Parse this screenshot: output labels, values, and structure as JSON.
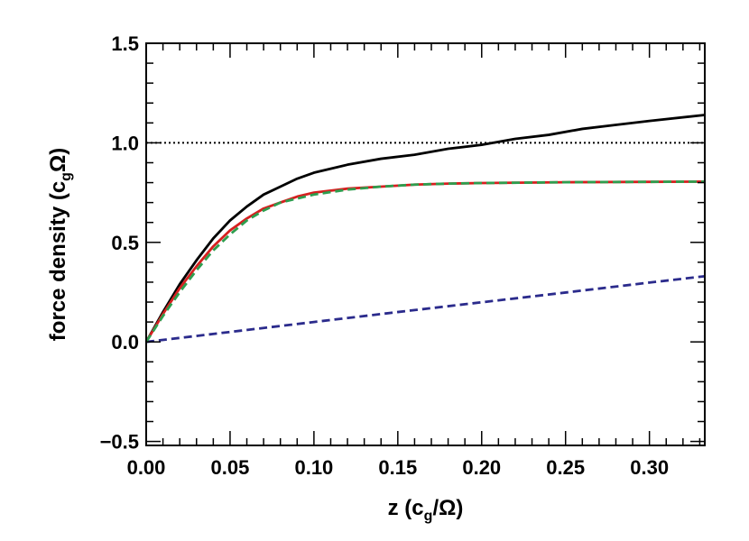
{
  "chart_data": {
    "type": "line",
    "xlabel_parts": [
      "z (c",
      "g",
      "/Ω)"
    ],
    "ylabel_parts": [
      "force density (c",
      "g",
      "Ω)"
    ],
    "xlim": [
      0,
      0.333
    ],
    "ylim": [
      -0.52,
      1.5
    ],
    "x_ticks": [
      0.0,
      0.05,
      0.1,
      0.15,
      0.2,
      0.25,
      0.3
    ],
    "x_tick_labels": [
      "0.00",
      "0.05",
      "0.10",
      "0.15",
      "0.20",
      "0.25",
      "0.30"
    ],
    "y_ticks": [
      -0.5,
      0.0,
      0.5,
      1.0,
      1.5
    ],
    "y_tick_labels": [
      "−0.5",
      "0.0",
      "0.5",
      "1.0",
      "1.5"
    ],
    "x_minor_step": 0.01,
    "y_minor_step": 0.1,
    "grid": false,
    "legend": "none",
    "series": [
      {
        "color": "#000000",
        "style": "dotted",
        "x": [
          0,
          0.333
        ],
        "y": [
          1.0,
          1.0
        ]
      },
      {
        "color": "#2b2b8c",
        "style": "dashed",
        "x": [
          0,
          0.05,
          0.1,
          0.15,
          0.2,
          0.25,
          0.3,
          0.333
        ],
        "y": [
          0.0,
          0.05,
          0.1,
          0.15,
          0.199,
          0.248,
          0.298,
          0.33
        ]
      },
      {
        "color": "#000000",
        "style": "solid",
        "x": [
          0,
          0.01,
          0.02,
          0.03,
          0.04,
          0.05,
          0.06,
          0.07,
          0.08,
          0.09,
          0.1,
          0.12,
          0.14,
          0.16,
          0.18,
          0.2,
          0.22,
          0.24,
          0.26,
          0.28,
          0.3,
          0.333
        ],
        "y": [
          0.0,
          0.15,
          0.29,
          0.41,
          0.52,
          0.61,
          0.68,
          0.74,
          0.78,
          0.82,
          0.85,
          0.89,
          0.92,
          0.94,
          0.97,
          0.99,
          1.02,
          1.04,
          1.07,
          1.09,
          1.11,
          1.14
        ]
      },
      {
        "color": "#d62020",
        "style": "solid",
        "x": [
          0,
          0.01,
          0.02,
          0.03,
          0.04,
          0.05,
          0.06,
          0.07,
          0.08,
          0.09,
          0.1,
          0.12,
          0.14,
          0.16,
          0.18,
          0.2,
          0.25,
          0.3,
          0.333
        ],
        "y": [
          0.0,
          0.14,
          0.27,
          0.38,
          0.48,
          0.56,
          0.62,
          0.67,
          0.7,
          0.73,
          0.75,
          0.77,
          0.78,
          0.79,
          0.795,
          0.798,
          0.802,
          0.804,
          0.805
        ]
      },
      {
        "color": "#2e9e4f",
        "style": "dashed",
        "x": [
          0,
          0.01,
          0.02,
          0.03,
          0.04,
          0.05,
          0.06,
          0.07,
          0.08,
          0.09,
          0.1,
          0.12,
          0.14,
          0.16,
          0.18,
          0.2,
          0.25,
          0.3,
          0.333
        ],
        "y": [
          0.0,
          0.13,
          0.25,
          0.36,
          0.46,
          0.54,
          0.61,
          0.66,
          0.7,
          0.72,
          0.74,
          0.765,
          0.78,
          0.79,
          0.795,
          0.798,
          0.802,
          0.804,
          0.805
        ]
      }
    ]
  }
}
